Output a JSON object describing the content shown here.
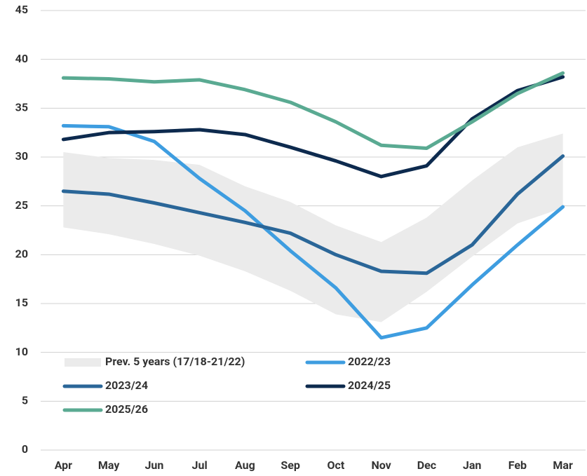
{
  "chart_data": {
    "type": "line",
    "categories": [
      "Apr",
      "May",
      "Jun",
      "Jul",
      "Aug",
      "Sep",
      "Oct",
      "Nov",
      "Dec",
      "Jan",
      "Feb",
      "Mar"
    ],
    "band": {
      "name": "Prev. 5 years (17/18-21/22)",
      "color": "#ebebeb",
      "lower": [
        22.8,
        22.1,
        21.1,
        19.9,
        18.3,
        16.3,
        13.9,
        13.1,
        16.2,
        19.8,
        23.2,
        24.8
      ],
      "upper": [
        30.5,
        29.9,
        29.7,
        29.2,
        27.0,
        25.4,
        23.0,
        21.3,
        23.8,
        27.6,
        31.0,
        32.4
      ]
    },
    "series": [
      {
        "name": "2022/23",
        "color": "#3e9de0",
        "values": [
          33.2,
          33.1,
          31.6,
          27.8,
          24.5,
          20.4,
          16.6,
          11.5,
          12.5,
          16.9,
          21.0,
          24.9
        ]
      },
      {
        "name": "2023/24",
        "color": "#2a6698",
        "values": [
          26.5,
          26.2,
          25.3,
          24.3,
          23.3,
          22.2,
          20.0,
          18.3,
          18.1,
          21.0,
          26.2,
          30.1
        ]
      },
      {
        "name": "2024/25",
        "color": "#0d2a4e",
        "values": [
          31.8,
          32.5,
          32.6,
          32.8,
          32.3,
          31.0,
          29.6,
          28.0,
          29.1,
          33.9,
          36.8,
          38.2
        ]
      },
      {
        "name": "2025/26",
        "color": "#5aaa92",
        "values": [
          38.1,
          38.0,
          37.7,
          37.9,
          36.9,
          35.6,
          33.6,
          31.2,
          30.9,
          33.6,
          36.5,
          38.6
        ]
      }
    ],
    "ylim": [
      0,
      45
    ],
    "yticks": [
      0,
      5,
      10,
      15,
      20,
      25,
      30,
      35,
      40,
      45
    ],
    "grid": true
  }
}
